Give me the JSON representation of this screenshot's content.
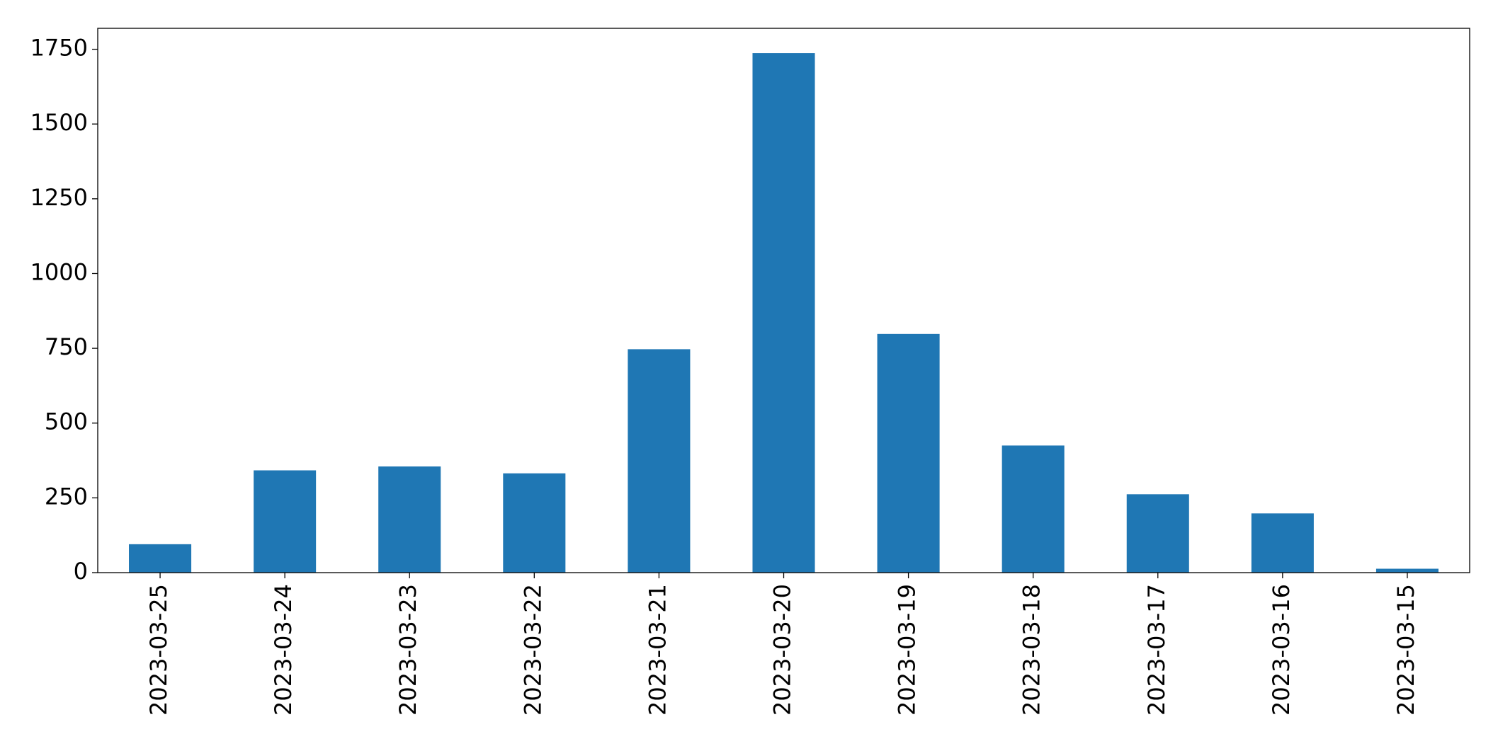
{
  "chart_data": {
    "type": "bar",
    "categories": [
      "2023-03-25",
      "2023-03-24",
      "2023-03-23",
      "2023-03-22",
      "2023-03-21",
      "2023-03-20",
      "2023-03-19",
      "2023-03-18",
      "2023-03-17",
      "2023-03-16",
      "2023-03-15"
    ],
    "values": [
      95,
      342,
      355,
      332,
      747,
      1737,
      798,
      425,
      262,
      198,
      13
    ],
    "color": "#1f77b4",
    "ylim": [
      0,
      1820
    ],
    "yticks": [
      0,
      250,
      500,
      750,
      1000,
      1250,
      1500,
      1750
    ],
    "grid": false
  }
}
